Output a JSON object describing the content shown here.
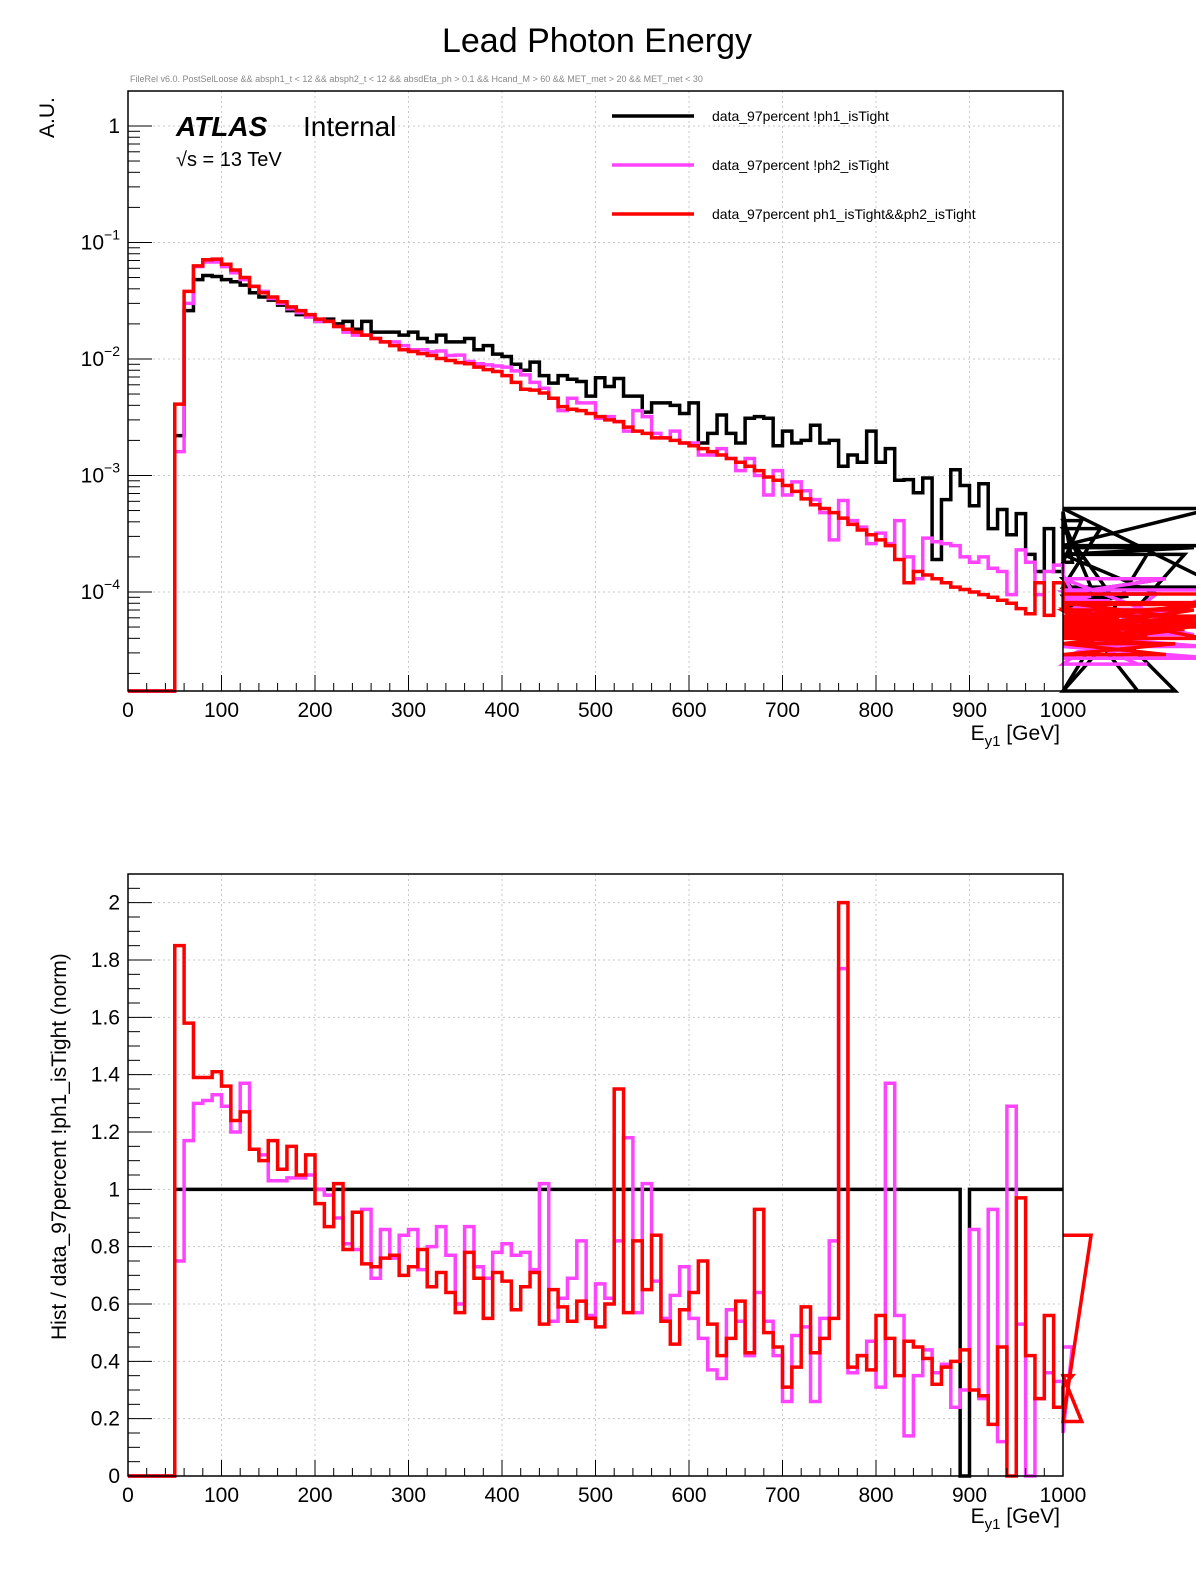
{
  "chart_data": [
    {
      "type": "line",
      "name": "top-histogram",
      "title": "Lead Photon Energy",
      "subtitle": "FileRel v6.0. PostSelLoose &&  absph1_t < 12 && absph2_t < 12 && absdEta_ph > 0.1 && Hcand_M > 60 && MET_met > 20 && MET_met < 30",
      "ylabel": "A.U.",
      "xlabel_main": "E",
      "xlabel_sub": "y1",
      "xlabel_unit": " [GeV]",
      "xlim": [
        0,
        1000
      ],
      "ylim_log10": [
        -4.85,
        0.3
      ],
      "yscale": "log",
      "x_ticks": [
        "0",
        "100",
        "200",
        "300",
        "400",
        "500",
        "600",
        "700",
        "800",
        "900",
        "1000"
      ],
      "y_ticks": [
        {
          "value": 1,
          "base": "1",
          "exp": ""
        },
        {
          "value": 0.1,
          "base": "10",
          "exp": "−1"
        },
        {
          "value": 0.01,
          "base": "10",
          "exp": "−2"
        },
        {
          "value": 0.001,
          "base": "10",
          "exp": "−3"
        },
        {
          "value": 0.0001,
          "base": "10",
          "exp": "−4"
        }
      ],
      "atlas_label": "ATLAS",
      "atlas_status": "Internal",
      "energy_label": "√s = 13 TeV",
      "bin_edges_start": 50,
      "bin_width": 10,
      "series": [
        {
          "name": "data_97percent  !ph1_isTight",
          "color": "#000000",
          "values": [
            0.0022,
            0.026,
            0.048,
            0.052,
            0.051,
            0.048,
            0.046,
            0.043,
            0.037,
            0.034,
            0.032,
            0.029,
            0.026,
            0.024,
            0.023,
            0.021,
            0.022,
            0.02,
            0.021,
            0.018,
            0.021,
            0.017,
            0.017,
            0.017,
            0.016,
            0.017,
            0.015,
            0.014,
            0.016,
            0.014,
            0.014,
            0.015,
            0.012,
            0.013,
            0.011,
            0.0105,
            0.009,
            0.008,
            0.0094,
            0.0072,
            0.0062,
            0.0072,
            0.0067,
            0.0064,
            0.0048,
            0.0069,
            0.0058,
            0.0068,
            0.0048,
            0.0048,
            0.0035,
            0.0042,
            0.0042,
            0.004,
            0.0034,
            0.0042,
            0.0019,
            0.0023,
            0.0033,
            0.0023,
            0.0019,
            0.0031,
            0.0032,
            0.0031,
            0.0018,
            0.0024,
            0.0019,
            0.002,
            0.0027,
            0.0019,
            0.002,
            0.0012,
            0.0015,
            0.0013,
            0.0024,
            0.0013,
            0.0017,
            0.00091,
            0.00092,
            0.00071,
            0.00095,
            0.00019,
            0.00062,
            0.00112,
            0.00082,
            0.00055,
            0.00085,
            0.00035,
            0.00051,
            0.00031,
            0.00047,
            0.00021,
            0.00015,
            0.00035,
            0.00015,
            0.00049,
            0.00018,
            0.00041,
            0.00011,
            0.00035,
            9.7e-05,
            7.9e-05,
            9.2e-05,
            2.8e-06,
            0.00021,
            9.6e-05,
            0.00013,
            2.8e-06,
            0.00021,
            0.00024,
            0.00025,
            0.00052,
            0.00011
          ]
        },
        {
          "name": "data_97percent  !ph2_isTight",
          "color": "#ff44ff",
          "values": [
            0.0016,
            0.03,
            0.062,
            0.068,
            0.068,
            0.062,
            0.055,
            0.048,
            0.042,
            0.038,
            0.033,
            0.03,
            0.027,
            0.025,
            0.023,
            0.021,
            0.021,
            0.019,
            0.017,
            0.016,
            0.016,
            0.015,
            0.014,
            0.014,
            0.013,
            0.012,
            0.012,
            0.0115,
            0.0117,
            0.0107,
            0.0108,
            0.0095,
            0.0091,
            0.0089,
            0.0087,
            0.0085,
            0.0079,
            0.0073,
            0.0063,
            0.0056,
            0.0046,
            0.0036,
            0.0046,
            0.0042,
            0.0042,
            0.0031,
            0.0032,
            0.0029,
            0.0024,
            0.0036,
            0.0032,
            0.0023,
            0.0021,
            0.0024,
            0.0019,
            0.0019,
            0.0015,
            0.0015,
            0.0017,
            0.0014,
            0.0011,
            0.0014,
            0.001,
            0.00068,
            0.0011,
            0.00068,
            0.00088,
            0.00074,
            0.00062,
            0.00048,
            0.00028,
            0.00061,
            0.00041,
            0.00036,
            0.00026,
            0.00032,
            0.00026,
            0.00041,
            0.0002,
            0.00013,
            0.00029,
            0.00027,
            0.00026,
            0.00025,
            0.0002,
            0.00018,
            0.0002,
            0.00016,
            0.00015,
            9.5e-05,
            0.00023,
            0.00018,
            9.5e-05,
            0.00015,
            0.00017,
            0.00014,
            0.0001,
            8.1e-05,
            9.2e-05,
            6.9e-05,
            8.4e-05,
            5.5e-05,
            4.6e-05,
            2.4e-05,
            2.4e-05,
            9.6e-05,
            0.00013,
            5.6e-05,
            7.1e-05,
            4.3e-05,
            3.4e-05,
            2.7e-05,
            0.000104
          ]
        },
        {
          "name": "data_97percent  ph1_isTight&&ph2_isTight",
          "color": "#ff0000",
          "values": [
            0.0041,
            0.038,
            0.063,
            0.071,
            0.072,
            0.065,
            0.058,
            0.05,
            0.042,
            0.037,
            0.034,
            0.031,
            0.028,
            0.026,
            0.024,
            0.022,
            0.021,
            0.019,
            0.018,
            0.017,
            0.016,
            0.015,
            0.014,
            0.013,
            0.012,
            0.0116,
            0.0111,
            0.0107,
            0.0101,
            0.0097,
            0.0093,
            0.0091,
            0.0085,
            0.0081,
            0.0078,
            0.0072,
            0.0063,
            0.0055,
            0.0054,
            0.0051,
            0.0046,
            0.0039,
            0.0037,
            0.0036,
            0.0034,
            0.0032,
            0.003,
            0.0029,
            0.0026,
            0.0024,
            0.0023,
            0.0021,
            0.0021,
            0.002,
            0.0019,
            0.0018,
            0.0017,
            0.0016,
            0.0015,
            0.0014,
            0.0013,
            0.0012,
            0.0011,
            0.00097,
            0.00091,
            0.00082,
            0.00073,
            0.00063,
            0.00056,
            0.00052,
            0.00048,
            0.00043,
            0.00038,
            0.00034,
            0.00031,
            0.00028,
            0.00025,
            0.00019,
            0.00012,
            0.00015,
            0.00014,
            0.00013,
            0.00012,
            0.00011,
            0.000105,
            0.0001,
            9.5e-05,
            9e-05,
            8.5e-05,
            8e-05,
            7.2e-05,
            6.5e-05,
            0.00012,
            6.3e-05,
            0.00012,
            7.5e-05,
            7.1e-05,
            5.2e-05,
            6.9e-05,
            4.5e-05,
            5.1e-05,
            5.8e-05,
            4.3e-05,
            5.2e-05,
            4.1e-05,
            3.6e-05,
            2.9e-05,
            3.6e-05,
            4.8e-05,
            7e-05,
            4e-05,
            5.2e-05,
            6.2e-05,
            8e-05,
            7.8e-05,
            8.1e-05,
            5e-05,
            5.6e-05,
            9.6e-05
          ]
        }
      ]
    },
    {
      "type": "line",
      "name": "ratio-histogram",
      "ylabel": "Hist / data_97percent  !ph1_isTight (norm)",
      "xlabel_main": "E",
      "xlabel_sub": "y1",
      "xlabel_unit": " [GeV]",
      "xlim": [
        0,
        1000
      ],
      "ylim": [
        0,
        2.1
      ],
      "x_ticks": [
        "0",
        "100",
        "200",
        "300",
        "400",
        "500",
        "600",
        "700",
        "800",
        "900",
        "1000"
      ],
      "y_ticks": [
        "0",
        "0.2",
        "0.4",
        "0.6",
        "0.8",
        "1",
        "1.2",
        "1.4",
        "1.6",
        "1.8",
        "2"
      ],
      "bin_edges_start": 50,
      "bin_width": 10,
      "series": [
        {
          "name": "data_97percent  !ph1_isTight",
          "color": "#000000",
          "values": [
            1,
            1,
            1,
            1,
            1,
            1,
            1,
            1,
            1,
            1,
            1,
            1,
            1,
            1,
            1,
            1,
            1,
            1,
            1,
            1,
            1,
            1,
            1,
            1,
            1,
            1,
            1,
            1,
            1,
            1,
            1,
            1,
            1,
            1,
            1,
            1,
            1,
            1,
            1,
            1,
            1,
            1,
            1,
            1,
            1,
            1,
            1,
            1,
            1,
            1,
            1,
            1,
            1,
            1,
            1,
            1,
            1,
            1,
            1,
            1,
            1,
            1,
            1,
            1,
            1,
            1,
            1,
            1,
            1,
            1,
            1,
            1,
            1,
            1,
            1,
            1,
            1,
            1,
            1,
            1,
            1,
            1,
            1,
            1,
            0,
            1,
            1,
            1,
            1,
            1,
            1,
            1,
            1,
            1,
            1
          ]
        },
        {
          "name": "data_97percent  !ph2_isTight",
          "color": "#ff44ff",
          "values": [
            0.75,
            1.17,
            1.3,
            1.31,
            1.33,
            1.29,
            1.2,
            1.37,
            1.14,
            1.12,
            1.03,
            1.03,
            1.04,
            1.04,
            1.05,
            1.0,
            0.98,
            0.9,
            0.81,
            0.79,
            0.93,
            0.69,
            0.86,
            0.76,
            0.84,
            0.86,
            0.72,
            0.8,
            0.87,
            0.77,
            0.6,
            0.87,
            0.73,
            0.69,
            0.78,
            0.81,
            0.77,
            0.78,
            0.72,
            1.02,
            0.54,
            0.62,
            0.69,
            0.82,
            0.56,
            0.67,
            0.62,
            0.82,
            1.18,
            0.57,
            1.02,
            0.68,
            0.55,
            0.63,
            0.73,
            0.55,
            0.48,
            0.37,
            0.34,
            0.58,
            0.54,
            0.42,
            0.64,
            0.54,
            0.42,
            0.26,
            0.49,
            0.52,
            0.26,
            0.55,
            0.82,
            1.77,
            0.36,
            0.42,
            0.47,
            0.31,
            1.37,
            0.56,
            0.14,
            0.35,
            0.44,
            0.36,
            0.39,
            0.24,
            0.3,
            0.86,
            0.27,
            0.93,
            0.12,
            1.29,
            0.53,
            0.0,
            0.27,
            0.36,
            0.33,
            0.15,
            0.45
          ]
        },
        {
          "name": "data_97percent  ph1_isTight&&ph2_isTight",
          "color": "#ff0000",
          "values": [
            1.85,
            1.58,
            1.39,
            1.39,
            1.41,
            1.36,
            1.24,
            1.27,
            1.14,
            1.1,
            1.17,
            1.07,
            1.15,
            1.05,
            1.12,
            0.95,
            0.87,
            1.02,
            0.79,
            0.92,
            0.74,
            0.73,
            0.76,
            0.77,
            0.7,
            0.73,
            0.79,
            0.66,
            0.71,
            0.64,
            0.57,
            0.78,
            0.69,
            0.55,
            0.71,
            0.68,
            0.58,
            0.66,
            0.71,
            0.53,
            0.65,
            0.59,
            0.54,
            0.61,
            0.55,
            0.52,
            0.6,
            1.35,
            0.57,
            0.82,
            0.65,
            0.84,
            0.54,
            0.46,
            0.58,
            0.64,
            0.75,
            0.53,
            0.42,
            0.48,
            0.61,
            0.43,
            0.93,
            0.5,
            0.45,
            0.31,
            0.38,
            0.59,
            0.43,
            0.48,
            0.55,
            2.0,
            0.38,
            0.42,
            0.37,
            0.56,
            0.48,
            0.35,
            0.47,
            0.45,
            0.41,
            0.32,
            0.38,
            0.4,
            0.44,
            0.3,
            0.28,
            0.18,
            0.45,
            0.0,
            0.97,
            0.42,
            0.27,
            0.56,
            0.24,
            0.31,
            0.35,
            0.19,
            0.84
          ]
        }
      ]
    }
  ]
}
